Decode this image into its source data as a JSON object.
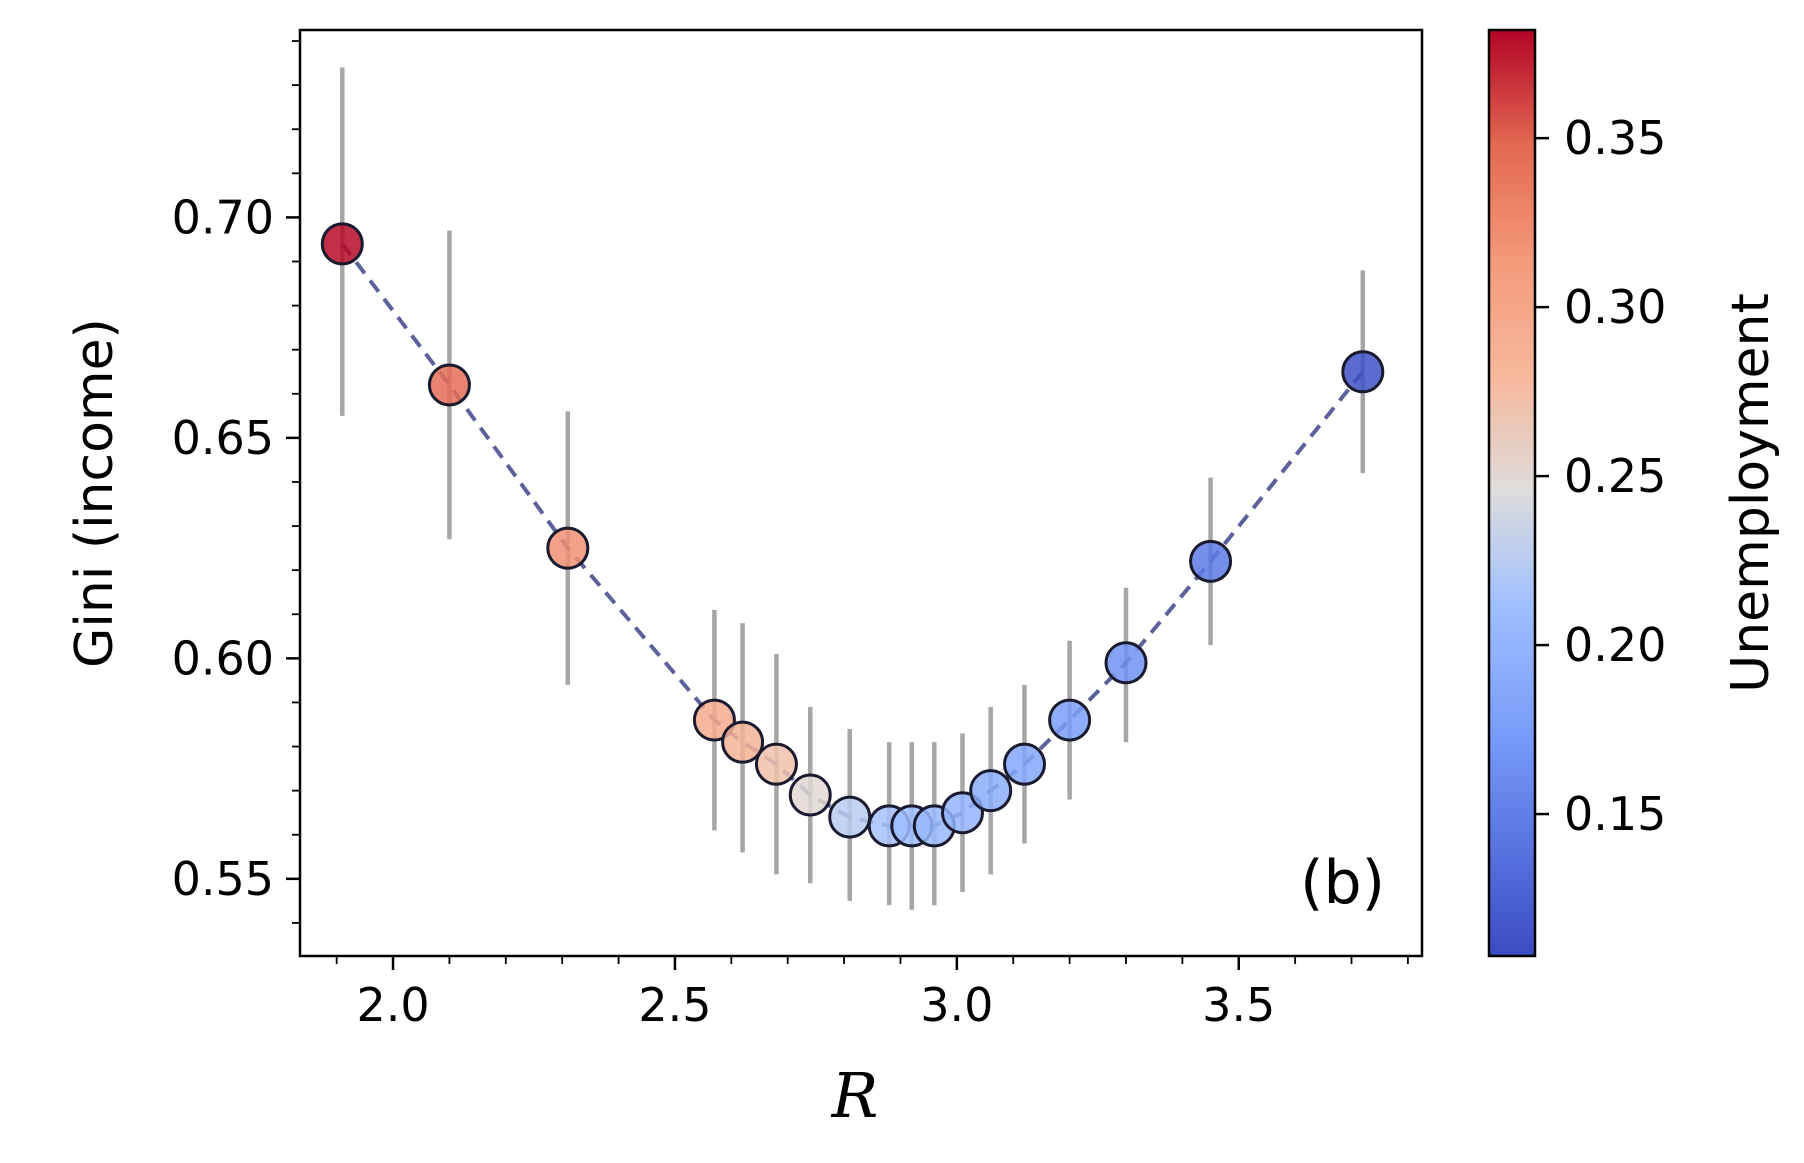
{
  "chart_data": {
    "type": "scatter",
    "title": "",
    "xlabel": "R",
    "ylabel": "Gini (income)",
    "xlim": [
      1.835,
      3.825
    ],
    "ylim": [
      0.5325,
      0.7425
    ],
    "x_ticks": [
      2.0,
      2.5,
      3.0,
      3.5
    ],
    "x_tick_labels": [
      "2.0",
      "2.5",
      "3.0",
      "3.5"
    ],
    "y_ticks": [
      0.55,
      0.6,
      0.65,
      0.7
    ],
    "y_tick_labels": [
      "0.55",
      "0.60",
      "0.65",
      "0.70"
    ],
    "panel_label": "(b)",
    "line_style": "dashed",
    "line_color": "#4b5090",
    "errorbar_color": "#a6a6a6",
    "colorbar": {
      "label": "Unemployment",
      "cmap": "coolwarm",
      "vmin": 0.108,
      "vmax": 0.382,
      "ticks": [
        0.15,
        0.2,
        0.25,
        0.3,
        0.35
      ],
      "tick_labels": [
        "0.15",
        "0.20",
        "0.25",
        "0.30",
        "0.35"
      ]
    },
    "series": [
      {
        "name": "Gini (income)",
        "x": [
          1.91,
          2.1,
          2.31,
          2.57,
          2.62,
          2.68,
          2.74,
          2.81,
          2.88,
          2.92,
          2.96,
          3.01,
          3.06,
          3.12,
          3.2,
          3.3,
          3.45,
          3.72
        ],
        "y": [
          0.694,
          0.662,
          0.625,
          0.586,
          0.581,
          0.576,
          0.569,
          0.564,
          0.562,
          0.562,
          0.562,
          0.565,
          0.57,
          0.576,
          0.586,
          0.599,
          0.622,
          0.665
        ],
        "err_low": [
          0.655,
          0.627,
          0.594,
          0.561,
          0.556,
          0.551,
          0.549,
          0.545,
          0.544,
          0.543,
          0.544,
          0.547,
          0.551,
          0.558,
          0.568,
          0.581,
          0.603,
          0.642
        ],
        "err_high": [
          0.734,
          0.697,
          0.656,
          0.611,
          0.608,
          0.601,
          0.589,
          0.584,
          0.581,
          0.581,
          0.581,
          0.583,
          0.589,
          0.594,
          0.604,
          0.616,
          0.641,
          0.688
        ],
        "unemployment": [
          0.38,
          0.345,
          0.32,
          0.295,
          0.285,
          0.272,
          0.25,
          0.225,
          0.215,
          0.21,
          0.205,
          0.2,
          0.192,
          0.185,
          0.175,
          0.165,
          0.145,
          0.112
        ]
      }
    ]
  }
}
